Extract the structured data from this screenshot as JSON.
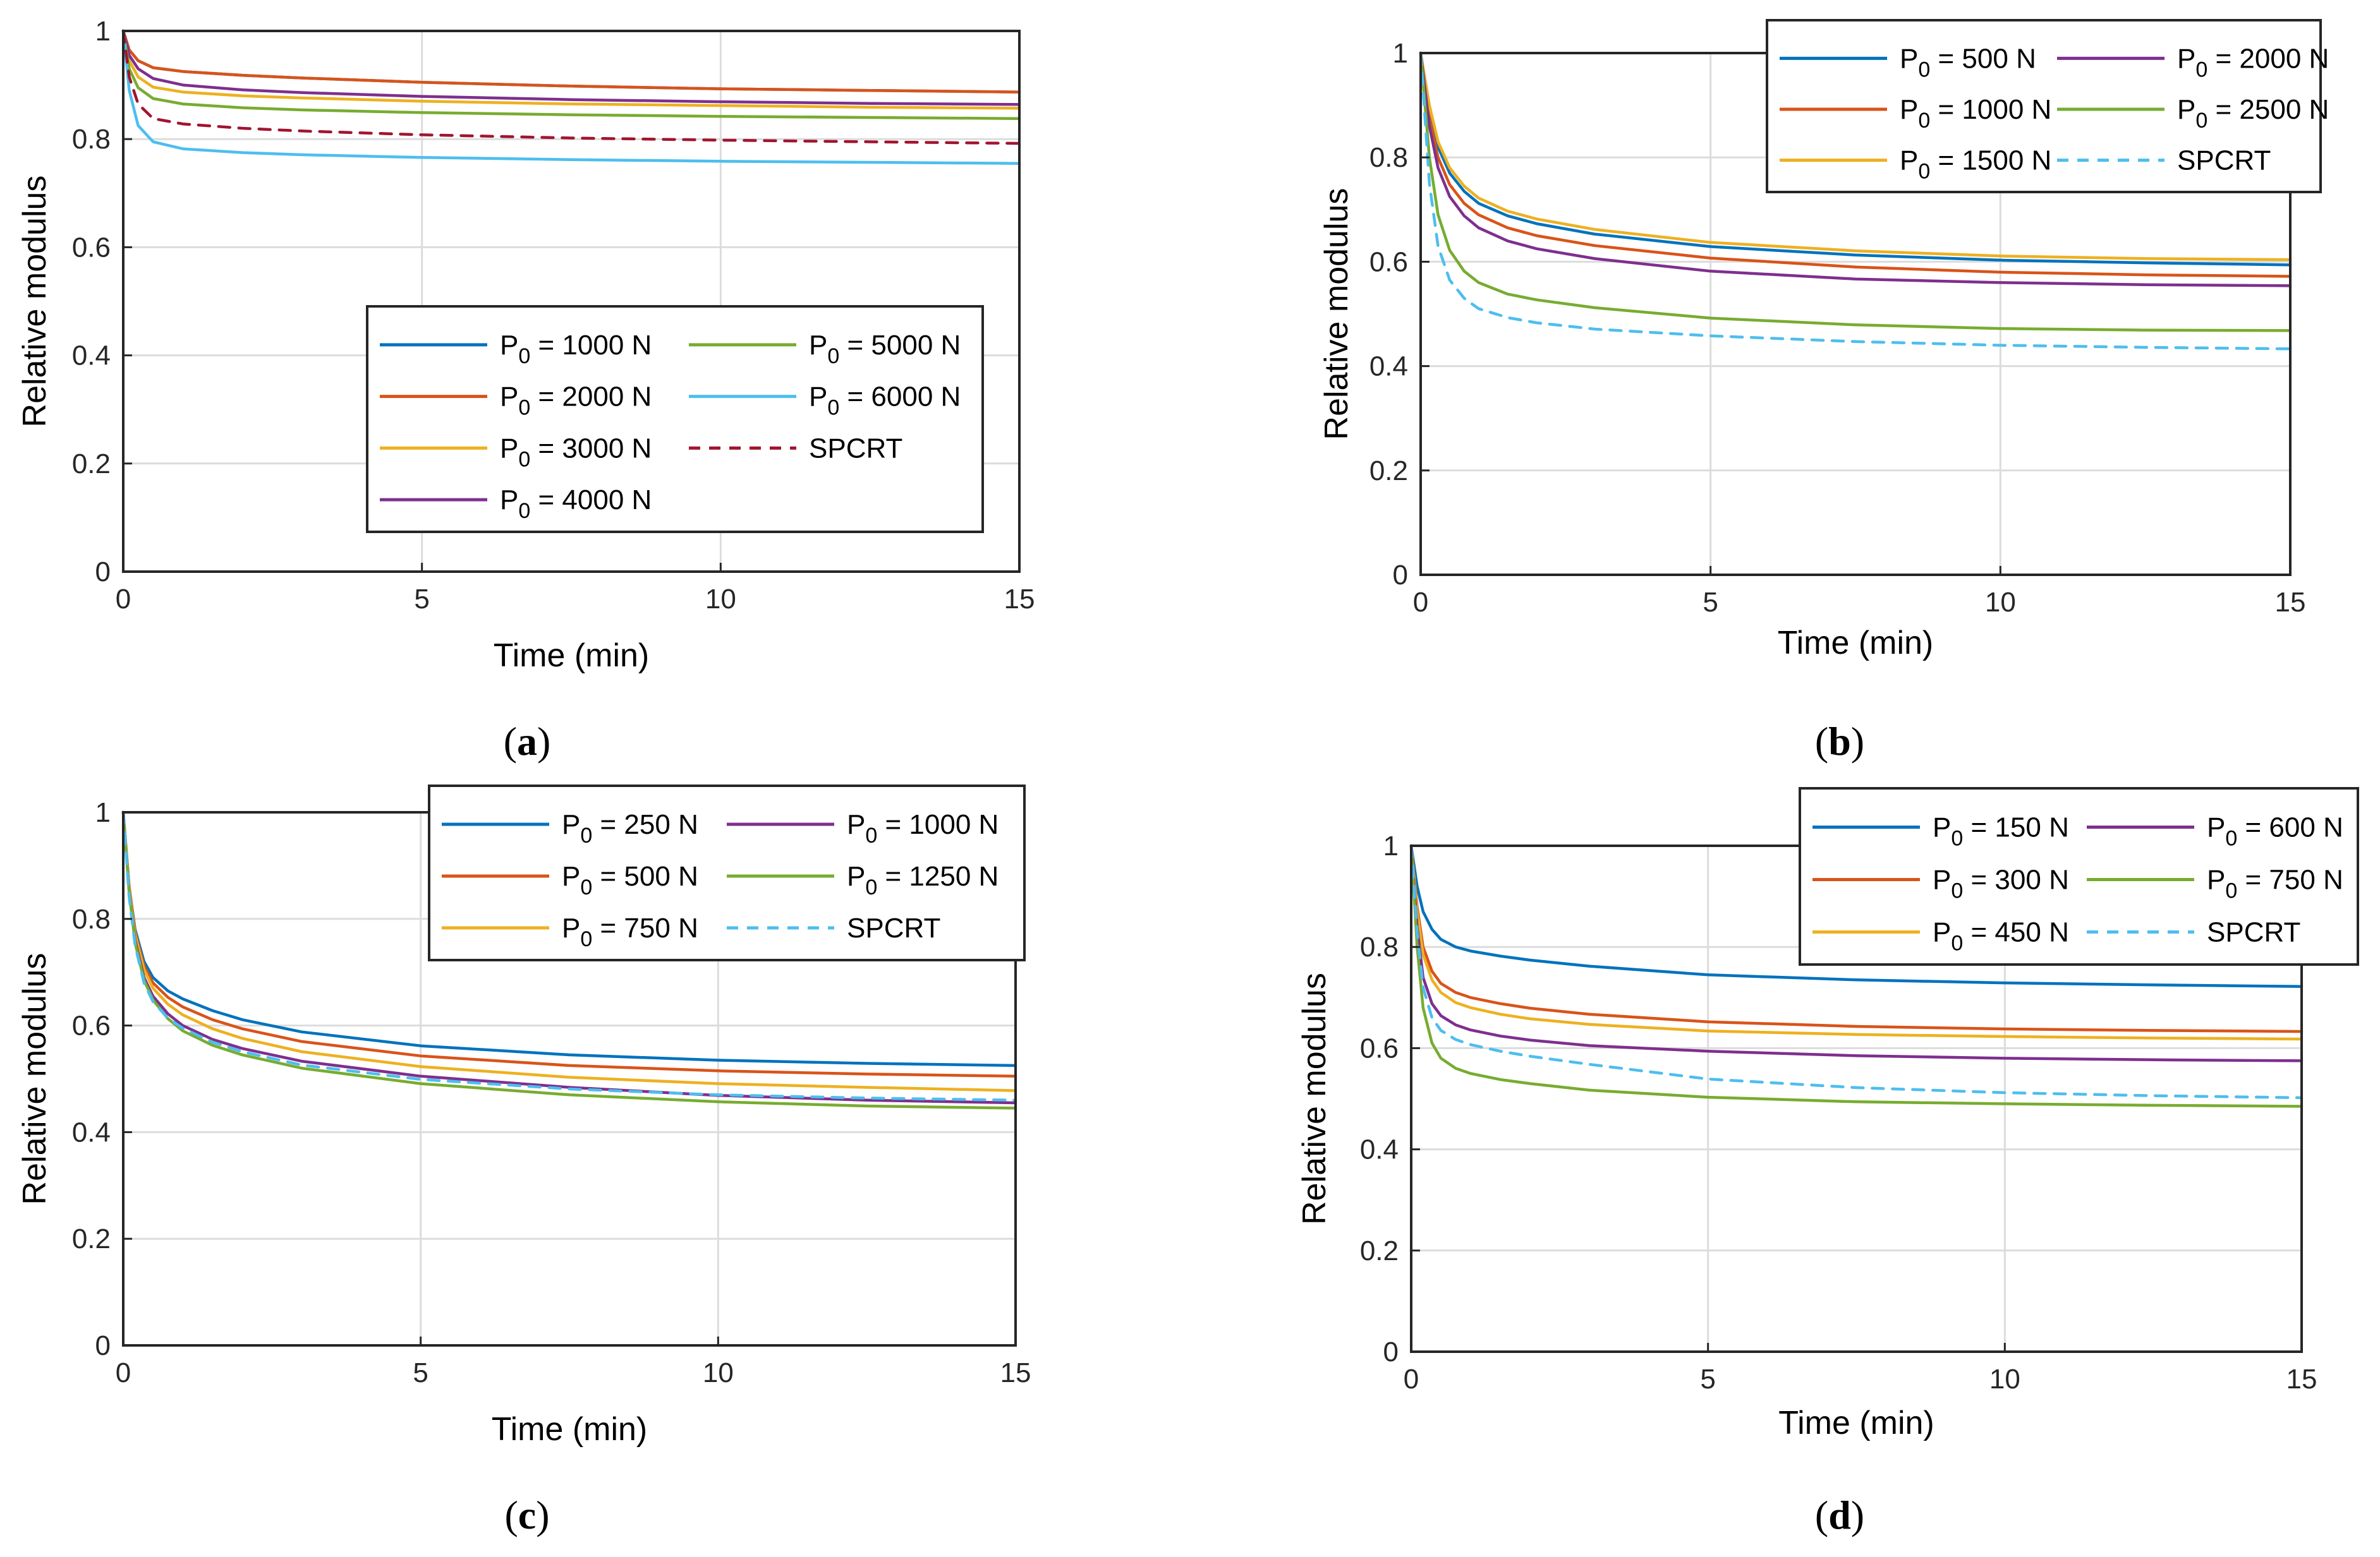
{
  "chart_data": [
    {
      "type": "line",
      "caption_letter": "a",
      "xlabel": "Time (min)",
      "ylabel": "Relative modulus",
      "xlim": [
        0,
        15
      ],
      "ylim": [
        0,
        1
      ],
      "xticks": [
        "0",
        "5",
        "10",
        "15"
      ],
      "yticks": [
        "0",
        "0.2",
        "0.4",
        "0.6",
        "0.8",
        "1"
      ],
      "grid": true,
      "legend_position": "lower-right",
      "series": [
        {
          "sub": "0",
          "text": " = 1000 N",
          "color": "#0072BD",
          "dashed": false,
          "x": [
            0,
            0.1,
            0.25,
            0.5,
            1,
            2,
            3,
            5,
            7.5,
            10,
            12.5,
            15
          ],
          "y": [
            1,
            0.965,
            0.945,
            0.932,
            0.925,
            0.918,
            0.913,
            0.905,
            0.898,
            0.893,
            0.89,
            0.887
          ]
        },
        {
          "sub": "0",
          "text": " = 2000 N",
          "color": "#D95319",
          "dashed": false,
          "x": [
            0,
            0.1,
            0.25,
            0.5,
            1,
            2,
            3,
            5,
            7.5,
            10,
            12.5,
            15
          ],
          "y": [
            1,
            0.965,
            0.945,
            0.932,
            0.925,
            0.918,
            0.913,
            0.905,
            0.898,
            0.893,
            0.89,
            0.887
          ]
        },
        {
          "sub": "0",
          "text": " = 3000 N",
          "color": "#EDB120",
          "dashed": false,
          "x": [
            0,
            0.1,
            0.25,
            0.5,
            1,
            2,
            3,
            5,
            7.5,
            10,
            12.5,
            15
          ],
          "y": [
            1,
            0.945,
            0.915,
            0.896,
            0.887,
            0.88,
            0.876,
            0.87,
            0.865,
            0.862,
            0.859,
            0.857
          ]
        },
        {
          "sub": "0",
          "text": " = 4000 N",
          "color": "#7E2F8E",
          "dashed": false,
          "x": [
            0,
            0.1,
            0.25,
            0.5,
            1,
            2,
            3,
            5,
            7.5,
            10,
            12.5,
            15
          ],
          "y": [
            1,
            0.955,
            0.93,
            0.912,
            0.9,
            0.891,
            0.886,
            0.879,
            0.873,
            0.869,
            0.866,
            0.864
          ]
        },
        {
          "sub": "0",
          "text": " = 5000 N",
          "color": "#77AC30",
          "dashed": false,
          "x": [
            0,
            0.1,
            0.25,
            0.5,
            1,
            2,
            3,
            5,
            7.5,
            10,
            12.5,
            15
          ],
          "y": [
            1,
            0.93,
            0.895,
            0.875,
            0.865,
            0.858,
            0.854,
            0.849,
            0.845,
            0.842,
            0.84,
            0.838
          ]
        },
        {
          "sub": "0",
          "text": " = 6000 N",
          "color": "#4DBEEE",
          "dashed": false,
          "x": [
            0,
            0.1,
            0.25,
            0.5,
            1,
            2,
            3,
            5,
            7.5,
            10,
            12.5,
            15
          ],
          "y": [
            1,
            0.89,
            0.825,
            0.795,
            0.782,
            0.775,
            0.771,
            0.766,
            0.762,
            0.759,
            0.757,
            0.755
          ]
        },
        {
          "sub": "",
          "text": "SPCRT",
          "color": "#A2142F",
          "dashed": true,
          "x": [
            0,
            0.1,
            0.25,
            0.5,
            1,
            2,
            3,
            5,
            7.5,
            10,
            12.5,
            15
          ],
          "y": [
            1,
            0.915,
            0.865,
            0.838,
            0.828,
            0.82,
            0.815,
            0.808,
            0.802,
            0.798,
            0.795,
            0.792
          ]
        }
      ]
    },
    {
      "type": "line",
      "caption_letter": "b",
      "xlabel": "Time (min)",
      "ylabel": "Relative modulus",
      "xlim": [
        0,
        15
      ],
      "ylim": [
        0,
        1
      ],
      "xticks": [
        "0",
        "5",
        "10",
        "15"
      ],
      "yticks": [
        "0",
        "0.2",
        "0.4",
        "0.6",
        "0.8",
        "1"
      ],
      "grid": true,
      "legend_position": "top-right",
      "series": [
        {
          "sub": "0",
          "text": " = 500 N",
          "color": "#0072BD",
          "dashed": false,
          "x": [
            0,
            0.15,
            0.3,
            0.5,
            0.75,
            1,
            1.5,
            2,
            3,
            5,
            7.5,
            10,
            12.5,
            15
          ],
          "y": [
            1,
            0.89,
            0.82,
            0.77,
            0.735,
            0.712,
            0.688,
            0.673,
            0.653,
            0.629,
            0.613,
            0.603,
            0.598,
            0.594
          ]
        },
        {
          "sub": "0",
          "text": " = 1000 N",
          "color": "#D95319",
          "dashed": false,
          "x": [
            0,
            0.15,
            0.3,
            0.5,
            0.75,
            1,
            1.5,
            2,
            3,
            5,
            7.5,
            10,
            12.5,
            15
          ],
          "y": [
            1,
            0.875,
            0.8,
            0.748,
            0.712,
            0.69,
            0.665,
            0.65,
            0.631,
            0.607,
            0.59,
            0.58,
            0.575,
            0.572
          ]
        },
        {
          "sub": "0",
          "text": " = 1500 N",
          "color": "#EDB120",
          "dashed": false,
          "x": [
            0,
            0.15,
            0.3,
            0.5,
            0.75,
            1,
            1.5,
            2,
            3,
            5,
            7.5,
            10,
            12.5,
            15
          ],
          "y": [
            1,
            0.9,
            0.83,
            0.78,
            0.745,
            0.722,
            0.697,
            0.682,
            0.662,
            0.637,
            0.621,
            0.611,
            0.606,
            0.604
          ]
        },
        {
          "sub": "0",
          "text": " = 2000 N",
          "color": "#7E2F8E",
          "dashed": false,
          "x": [
            0,
            0.15,
            0.3,
            0.5,
            0.75,
            1,
            1.5,
            2,
            3,
            5,
            7.5,
            10,
            12.5,
            15
          ],
          "y": [
            1,
            0.86,
            0.78,
            0.725,
            0.688,
            0.665,
            0.64,
            0.625,
            0.606,
            0.582,
            0.567,
            0.56,
            0.556,
            0.554
          ]
        },
        {
          "sub": "0",
          "text": " = 2500 N",
          "color": "#77AC30",
          "dashed": false,
          "x": [
            0,
            0.15,
            0.3,
            0.5,
            0.75,
            1,
            1.5,
            2,
            3,
            5,
            7.5,
            10,
            12.5,
            15
          ],
          "y": [
            1,
            0.8,
            0.69,
            0.622,
            0.582,
            0.56,
            0.538,
            0.527,
            0.512,
            0.492,
            0.479,
            0.472,
            0.469,
            0.468
          ]
        },
        {
          "sub": "",
          "text": "SPCRT",
          "color": "#4DBEEE",
          "dashed": true,
          "x": [
            0,
            0.15,
            0.3,
            0.5,
            0.75,
            1,
            1.5,
            2,
            3,
            5,
            7.5,
            10,
            12.5,
            15
          ],
          "y": [
            1,
            0.75,
            0.63,
            0.565,
            0.53,
            0.51,
            0.493,
            0.483,
            0.471,
            0.458,
            0.447,
            0.44,
            0.436,
            0.433
          ]
        }
      ]
    },
    {
      "type": "line",
      "caption_letter": "c",
      "xlabel": "Time (min)",
      "ylabel": "Relative modulus",
      "xlim": [
        0,
        15
      ],
      "ylim": [
        0,
        1
      ],
      "xticks": [
        "0",
        "5",
        "10",
        "15"
      ],
      "yticks": [
        "0",
        "0.2",
        "0.4",
        "0.6",
        "0.8",
        "1"
      ],
      "grid": true,
      "legend_position": "top-right",
      "series": [
        {
          "sub": "0",
          "text": " = 250 N",
          "color": "#0072BD",
          "dashed": false,
          "x": [
            0,
            0.1,
            0.2,
            0.35,
            0.5,
            0.75,
            1,
            1.5,
            2,
            3,
            5,
            7.5,
            10,
            12.5,
            15
          ],
          "y": [
            1,
            0.86,
            0.78,
            0.72,
            0.69,
            0.665,
            0.65,
            0.628,
            0.611,
            0.588,
            0.562,
            0.545,
            0.535,
            0.529,
            0.525
          ]
        },
        {
          "sub": "0",
          "text": " = 500 N",
          "color": "#D95319",
          "dashed": false,
          "x": [
            0,
            0.1,
            0.2,
            0.35,
            0.5,
            0.75,
            1,
            1.5,
            2,
            3,
            5,
            7.5,
            10,
            12.5,
            15
          ],
          "y": [
            1,
            0.86,
            0.775,
            0.712,
            0.68,
            0.653,
            0.635,
            0.611,
            0.594,
            0.57,
            0.543,
            0.525,
            0.515,
            0.509,
            0.505
          ]
        },
        {
          "sub": "0",
          "text": " = 750 N",
          "color": "#EDB120",
          "dashed": false,
          "x": [
            0,
            0.1,
            0.2,
            0.35,
            0.5,
            0.75,
            1,
            1.5,
            2,
            3,
            5,
            7.5,
            10,
            12.5,
            15
          ],
          "y": [
            1,
            0.855,
            0.77,
            0.705,
            0.67,
            0.64,
            0.62,
            0.594,
            0.576,
            0.551,
            0.523,
            0.503,
            0.491,
            0.484,
            0.478
          ]
        },
        {
          "sub": "0",
          "text": " = 1000 N",
          "color": "#7E2F8E",
          "dashed": false,
          "x": [
            0,
            0.1,
            0.2,
            0.35,
            0.5,
            0.75,
            1,
            1.5,
            2,
            3,
            5,
            7.5,
            10,
            12.5,
            15
          ],
          "y": [
            1,
            0.85,
            0.76,
            0.69,
            0.655,
            0.622,
            0.6,
            0.574,
            0.557,
            0.533,
            0.505,
            0.484,
            0.469,
            0.46,
            0.455
          ]
        },
        {
          "sub": "0",
          "text": " = 1250 N",
          "color": "#77AC30",
          "dashed": false,
          "x": [
            0,
            0.1,
            0.2,
            0.35,
            0.5,
            0.75,
            1,
            1.5,
            2,
            3,
            5,
            7.5,
            10,
            12.5,
            15
          ],
          "y": [
            1,
            0.85,
            0.755,
            0.685,
            0.648,
            0.613,
            0.59,
            0.563,
            0.545,
            0.52,
            0.491,
            0.47,
            0.457,
            0.449,
            0.445
          ]
        },
        {
          "sub": "",
          "text": "SPCRT",
          "color": "#4DBEEE",
          "dashed": true,
          "x": [
            0,
            0.1,
            0.2,
            0.35,
            0.5,
            0.75,
            1,
            1.5,
            2,
            3,
            5,
            7.5,
            10,
            12.5,
            15
          ],
          "y": [
            1,
            0.84,
            0.75,
            0.68,
            0.645,
            0.614,
            0.595,
            0.569,
            0.551,
            0.526,
            0.499,
            0.481,
            0.47,
            0.464,
            0.46
          ]
        }
      ]
    },
    {
      "type": "line",
      "caption_letter": "d",
      "xlabel": "Time (min)",
      "ylabel": "Relative modulus",
      "xlim": [
        0,
        15
      ],
      "ylim": [
        0,
        1
      ],
      "xticks": [
        "0",
        "5",
        "10",
        "15"
      ],
      "yticks": [
        "0",
        "0.2",
        "0.4",
        "0.6",
        "0.8",
        "1"
      ],
      "grid": true,
      "legend_position": "top-right",
      "series": [
        {
          "sub": "0",
          "text": " = 150 N",
          "color": "#0072BD",
          "dashed": false,
          "x": [
            0,
            0.1,
            0.2,
            0.35,
            0.5,
            0.75,
            1,
            1.5,
            2,
            3,
            5,
            7.5,
            10,
            12.5,
            15
          ],
          "y": [
            1,
            0.92,
            0.87,
            0.835,
            0.815,
            0.8,
            0.792,
            0.782,
            0.774,
            0.762,
            0.745,
            0.735,
            0.729,
            0.725,
            0.722
          ]
        },
        {
          "sub": "0",
          "text": " = 300 N",
          "color": "#D95319",
          "dashed": false,
          "x": [
            0,
            0.1,
            0.2,
            0.35,
            0.5,
            0.75,
            1,
            1.5,
            2,
            3,
            5,
            7.5,
            10,
            12.5,
            15
          ],
          "y": [
            1,
            0.88,
            0.8,
            0.752,
            0.728,
            0.71,
            0.7,
            0.688,
            0.679,
            0.667,
            0.652,
            0.643,
            0.638,
            0.635,
            0.633
          ]
        },
        {
          "sub": "0",
          "text": " = 450 N",
          "color": "#EDB120",
          "dashed": false,
          "x": [
            0,
            0.1,
            0.2,
            0.35,
            0.5,
            0.75,
            1,
            1.5,
            2,
            3,
            5,
            7.5,
            10,
            12.5,
            15
          ],
          "y": [
            1,
            0.87,
            0.785,
            0.735,
            0.71,
            0.69,
            0.68,
            0.667,
            0.658,
            0.647,
            0.634,
            0.627,
            0.623,
            0.62,
            0.618
          ]
        },
        {
          "sub": "0",
          "text": " = 600 N",
          "color": "#7E2F8E",
          "dashed": false,
          "x": [
            0,
            0.1,
            0.2,
            0.35,
            0.5,
            0.75,
            1,
            1.5,
            2,
            3,
            5,
            7.5,
            10,
            12.5,
            15
          ],
          "y": [
            1,
            0.84,
            0.74,
            0.688,
            0.664,
            0.646,
            0.636,
            0.624,
            0.616,
            0.605,
            0.594,
            0.585,
            0.58,
            0.577,
            0.575
          ]
        },
        {
          "sub": "0",
          "text": " = 750 N",
          "color": "#77AC30",
          "dashed": false,
          "x": [
            0,
            0.1,
            0.2,
            0.35,
            0.5,
            0.75,
            1,
            1.5,
            2,
            3,
            5,
            7.5,
            10,
            12.5,
            15
          ],
          "y": [
            1,
            0.8,
            0.68,
            0.61,
            0.58,
            0.56,
            0.55,
            0.538,
            0.53,
            0.517,
            0.503,
            0.494,
            0.49,
            0.487,
            0.485
          ]
        },
        {
          "sub": "",
          "text": "SPCRT",
          "color": "#4DBEEE",
          "dashed": true,
          "x": [
            0,
            0.1,
            0.2,
            0.35,
            0.5,
            0.75,
            1,
            1.5,
            2,
            3,
            5,
            7.5,
            10,
            12.5,
            15
          ],
          "y": [
            1,
            0.83,
            0.72,
            0.66,
            0.635,
            0.617,
            0.607,
            0.594,
            0.584,
            0.568,
            0.539,
            0.522,
            0.512,
            0.506,
            0.502
          ]
        }
      ]
    }
  ]
}
